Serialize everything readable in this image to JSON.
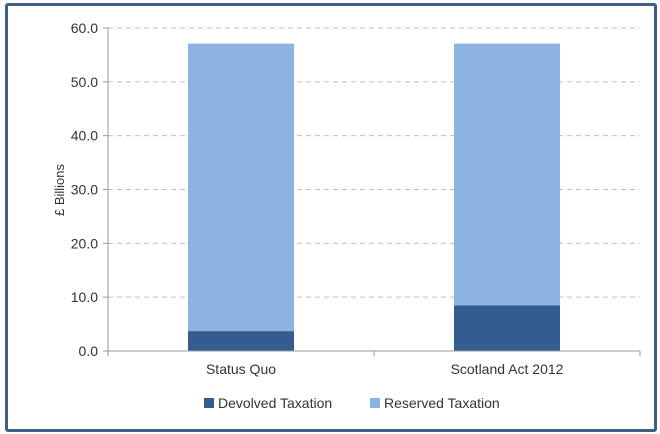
{
  "chart_data": {
    "type": "bar",
    "stacked": true,
    "title": "",
    "xlabel": "",
    "ylabel": "£ Billions",
    "ylim": [
      0,
      60
    ],
    "yticks": [
      "0.0",
      "10.0",
      "20.0",
      "30.0",
      "40.0",
      "50.0",
      "60.0"
    ],
    "grid": true,
    "legend_position": "bottom",
    "categories": [
      "Status Quo",
      "Scotland Act 2012"
    ],
    "series": [
      {
        "name": "Devolved Taxation",
        "color": "#335d8f",
        "values": [
          3.7,
          8.5
        ]
      },
      {
        "name": "Reserved Taxation",
        "color": "#8db3e2",
        "values": [
          53.4,
          48.6
        ]
      }
    ]
  }
}
